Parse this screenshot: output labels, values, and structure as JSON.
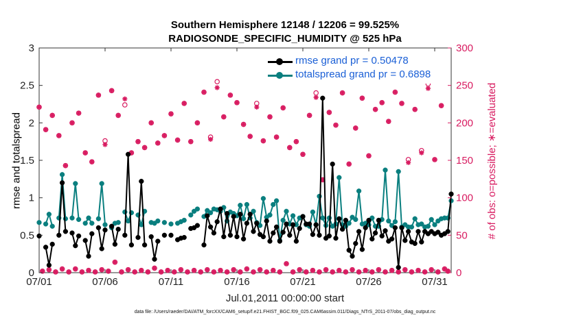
{
  "chart_data": {
    "type": "line",
    "title_line1": "Southern Hemisphere 12148 / 12206 = 99.525%",
    "title_line2": "RADIOSONDE_SPECIFIC_HUMIDITY @ 525 hPa",
    "xlabel": "Jul.01,2011 00:00:00 start",
    "ylabel_left": "rmse and totalspread",
    "ylabel_right": "# of obs: o=possible; ∗=evaluated",
    "footnote": "data file: /Users/raeder/DAI/ATM_forcXX/CAM6_setup/f.e21.FHIST_BGC.f09_025.CAM6assim.011/Diags_NTrS_2011-07/obs_diag_output.nc",
    "x_ticks": [
      "07/01",
      "07/06",
      "07/11",
      "07/16",
      "07/21",
      "07/26",
      "07/31"
    ],
    "x_tick_days": [
      1,
      6,
      11,
      16,
      21,
      26,
      31
    ],
    "xlim": [
      1,
      32.25
    ],
    "ylim_left": [
      0,
      3
    ],
    "yticks_left": [
      "0",
      "0.5",
      "1",
      "1.5",
      "2",
      "2.5",
      "3"
    ],
    "ylim_right": [
      0,
      300
    ],
    "yticks_right": [
      "0",
      "50",
      "100",
      "150",
      "200",
      "250",
      "300"
    ],
    "colors": {
      "rmse": "#000000",
      "spread": "#0a7f7f",
      "counts": "#d81b60",
      "legend_text": "#1a5fd6"
    },
    "x": [
      1.0,
      1.25,
      1.5,
      1.75,
      2.0,
      2.25,
      2.5,
      2.75,
      3.0,
      3.25,
      3.5,
      3.75,
      4.0,
      4.25,
      4.5,
      4.75,
      5.0,
      5.25,
      5.5,
      5.75,
      6.0,
      6.25,
      6.5,
      6.75,
      7.0,
      7.25,
      7.5,
      7.75,
      8.0,
      8.25,
      8.5,
      8.75,
      9.0,
      9.25,
      9.5,
      9.75,
      10.0,
      10.25,
      10.5,
      10.75,
      11.0,
      11.25,
      11.5,
      11.75,
      12.0,
      12.25,
      12.5,
      12.75,
      13.0,
      13.25,
      13.5,
      13.75,
      14.0,
      14.25,
      14.5,
      14.75,
      15.0,
      15.25,
      15.5,
      15.75,
      16.0,
      16.25,
      16.5,
      16.75,
      17.0,
      17.25,
      17.5,
      17.75,
      18.0,
      18.25,
      18.5,
      18.75,
      19.0,
      19.25,
      19.5,
      19.75,
      20.0,
      20.25,
      20.5,
      20.75,
      21.0,
      21.25,
      21.5,
      21.75,
      22.0,
      22.25,
      22.5,
      22.75,
      23.0,
      23.25,
      23.5,
      23.75,
      24.0,
      24.25,
      24.5,
      24.75,
      25.0,
      25.25,
      25.5,
      25.75,
      26.0,
      26.25,
      26.5,
      26.75,
      27.0,
      27.25,
      27.5,
      27.75,
      28.0,
      28.25,
      28.5,
      28.75,
      29.0,
      29.25,
      29.5,
      29.75,
      30.0,
      30.25,
      30.5,
      30.75,
      31.0,
      31.25,
      31.5,
      31.75,
      32.0,
      32.25
    ],
    "series": [
      {
        "name": "rmse grand pr = 0.50478",
        "values": [
          0.49,
          null,
          0.34,
          0.1,
          0.38,
          null,
          0.5,
          1.2,
          0.55,
          null,
          0.53,
          0.36,
          0.49,
          null,
          0.43,
          0.22,
          0.52,
          null,
          0.6,
          0.32,
          0.57,
          null,
          0.62,
          0.38,
          0.58,
          null,
          0.5,
          1.58,
          0.37,
          null,
          0.47,
          1.22,
          0.37,
          null,
          0.48,
          0.18,
          0.42,
          null,
          0.5,
          null,
          0.5,
          null,
          0.44,
          0.46,
          0.47,
          null,
          0.59,
          0.6,
          0.63,
          null,
          0.37,
          0.76,
          0.61,
          0.53,
          0.68,
          0.85,
          0.48,
          0.79,
          0.5,
          0.75,
          0.48,
          0.78,
          0.45,
          0.66,
          0.78,
          0.55,
          0.66,
          0.51,
          0.48,
          0.69,
          0.42,
          0.53,
          0.61,
          0.42,
          0.54,
          0.65,
          0.5,
          0.64,
          0.42,
          0.59,
          0.75,
          0.65,
          0.65,
          0.51,
          0.64,
          0.5,
          2.33,
          0.46,
          0.49,
          1.45,
          0.46,
          0.72,
          0.58,
          0.7,
          0.3,
          0.22,
          0.39,
          0.55,
          0.31,
          0.6,
          0.7,
          0.45,
          0.53,
          0.7,
          0.49,
          0.56,
          0.42,
          0.45,
          0.6,
          0.07,
          0.6,
          0.43,
          0.55,
          0.41,
          0.39,
          0.55,
          0.41,
          0.55,
          0.52,
          0.55,
          0.52,
          0.54,
          0.5,
          0.52,
          0.55,
          1.05
        ],
        "legend": "rmse grand pr = 0.50478"
      },
      {
        "name": "totalspread grand pr = 0.6898",
        "values": [
          0.67,
          null,
          0.65,
          0.78,
          0.62,
          null,
          0.73,
          1.31,
          0.72,
          null,
          0.73,
          1.19,
          0.71,
          null,
          0.66,
          0.73,
          0.66,
          null,
          0.72,
          1.19,
          0.64,
          null,
          0.6,
          0.66,
          0.67,
          null,
          0.81,
          0.69,
          0.8,
          null,
          0.77,
          0.64,
          0.82,
          null,
          0.67,
          0.66,
          0.69,
          null,
          0.67,
          null,
          0.65,
          null,
          0.66,
          0.68,
          0.7,
          null,
          0.77,
          0.82,
          0.85,
          null,
          0.75,
          0.83,
          0.8,
          0.85,
          0.84,
          0.82,
          0.87,
          0.69,
          0.81,
          0.79,
          0.76,
          0.9,
          0.72,
          0.91,
          0.73,
          0.82,
          0.67,
          0.63,
          0.99,
          0.74,
          0.77,
          0.91,
          0.96,
          0.43,
          0.7,
          0.82,
          0.65,
          0.76,
          0.64,
          0.73,
          0.75,
          0.64,
          0.62,
          0.81,
          0.64,
          1.02,
          0.73,
          0.63,
          0.73,
          0.62,
          0.65,
          1.27,
          0.64,
          0.62,
          0.66,
          0.74,
          0.71,
          1.09,
          0.65,
          0.66,
          0.64,
          0.73,
          0.62,
          0.62,
          0.71,
          1.37,
          0.69,
          0.63,
          0.68,
          1.35,
          0.61,
          0.64,
          0.61,
          0.61,
          0.72,
          0.64,
          0.65,
          0.61,
          0.62,
          0.71,
          0.64,
          0.69,
          0.72,
          0.73,
          0.73,
          0.96
        ],
        "legend": "totalspread grand pr = 0.6898"
      }
    ],
    "possible_large": [
      {
        "x": 1.0,
        "y": 221
      },
      {
        "x": 1.5,
        "y": 191
      },
      {
        "x": 2.0,
        "y": 210
      },
      {
        "x": 2.5,
        "y": 183
      },
      {
        "x": 3.0,
        "y": 143
      },
      {
        "x": 3.5,
        "y": 200
      },
      {
        "x": 4.0,
        "y": 213
      },
      {
        "x": 4.5,
        "y": 160
      },
      {
        "x": 5.0,
        "y": 148
      },
      {
        "x": 5.5,
        "y": 237
      },
      {
        "x": 6.0,
        "y": 176
      },
      {
        "x": 6.5,
        "y": 243
      },
      {
        "x": 7.0,
        "y": 210
      },
      {
        "x": 7.5,
        "y": 224
      },
      {
        "x": 8.0,
        "y": 160
      },
      {
        "x": 8.5,
        "y": 175
      },
      {
        "x": 9.0,
        "y": 167
      },
      {
        "x": 9.5,
        "y": 200
      },
      {
        "x": 10.0,
        "y": 173
      },
      {
        "x": 10.5,
        "y": 183
      },
      {
        "x": 11.0,
        "y": 212
      },
      {
        "x": 11.5,
        "y": 177
      },
      {
        "x": 12.0,
        "y": 226
      },
      {
        "x": 12.5,
        "y": 175
      },
      {
        "x": 13.0,
        "y": 200
      },
      {
        "x": 13.5,
        "y": 241
      },
      {
        "x": 14.0,
        "y": 181
      },
      {
        "x": 14.5,
        "y": 255
      },
      {
        "x": 15.0,
        "y": 208
      },
      {
        "x": 15.5,
        "y": 237
      },
      {
        "x": 16.0,
        "y": 227
      },
      {
        "x": 16.5,
        "y": 198
      },
      {
        "x": 17.0,
        "y": 182
      },
      {
        "x": 17.5,
        "y": 226
      },
      {
        "x": 18.0,
        "y": 176
      },
      {
        "x": 18.5,
        "y": 208
      },
      {
        "x": 19.0,
        "y": 181
      },
      {
        "x": 19.5,
        "y": 220
      },
      {
        "x": 20.0,
        "y": 167
      },
      {
        "x": 20.5,
        "y": 175
      },
      {
        "x": 21.0,
        "y": 158
      },
      {
        "x": 21.5,
        "y": 210
      },
      {
        "x": 22.0,
        "y": 240
      },
      {
        "x": 22.5,
        "y": 124
      },
      {
        "x": 23.0,
        "y": 214
      },
      {
        "x": 23.5,
        "y": 197
      },
      {
        "x": 24.0,
        "y": 240
      },
      {
        "x": 24.5,
        "y": 145
      },
      {
        "x": 25.0,
        "y": 193
      },
      {
        "x": 25.5,
        "y": 233
      },
      {
        "x": 26.0,
        "y": 156
      },
      {
        "x": 26.5,
        "y": 218
      },
      {
        "x": 27.0,
        "y": 227
      },
      {
        "x": 27.5,
        "y": 202
      },
      {
        "x": 28.0,
        "y": 241
      },
      {
        "x": 28.5,
        "y": 226
      },
      {
        "x": 29.0,
        "y": 151
      },
      {
        "x": 29.5,
        "y": 218
      },
      {
        "x": 30.0,
        "y": 163
      },
      {
        "x": 30.5,
        "y": 252
      },
      {
        "x": 31.0,
        "y": 151
      },
      {
        "x": 31.5,
        "y": 223
      }
    ],
    "evaluated_large": [
      {
        "x": 1.0,
        "y": 221
      },
      {
        "x": 1.5,
        "y": 191
      },
      {
        "x": 2.0,
        "y": 210
      },
      {
        "x": 2.5,
        "y": 183
      },
      {
        "x": 3.0,
        "y": 143
      },
      {
        "x": 3.5,
        "y": 200
      },
      {
        "x": 4.0,
        "y": 213
      },
      {
        "x": 4.5,
        "y": 160
      },
      {
        "x": 5.0,
        "y": 148
      },
      {
        "x": 5.5,
        "y": 237
      },
      {
        "x": 6.0,
        "y": 171
      },
      {
        "x": 6.5,
        "y": 243
      },
      {
        "x": 7.0,
        "y": 210
      },
      {
        "x": 7.5,
        "y": 232
      },
      {
        "x": 8.0,
        "y": 160
      },
      {
        "x": 8.5,
        "y": 175
      },
      {
        "x": 9.0,
        "y": 167
      },
      {
        "x": 9.5,
        "y": 200
      },
      {
        "x": 10.0,
        "y": 173
      },
      {
        "x": 10.5,
        "y": 183
      },
      {
        "x": 11.0,
        "y": 212
      },
      {
        "x": 11.5,
        "y": 177
      },
      {
        "x": 12.0,
        "y": 226
      },
      {
        "x": 12.5,
        "y": 175
      },
      {
        "x": 13.0,
        "y": 200
      },
      {
        "x": 13.5,
        "y": 241
      },
      {
        "x": 14.0,
        "y": 178
      },
      {
        "x": 14.5,
        "y": 247
      },
      {
        "x": 15.0,
        "y": 208
      },
      {
        "x": 15.5,
        "y": 237
      },
      {
        "x": 16.0,
        "y": 227
      },
      {
        "x": 16.5,
        "y": 198
      },
      {
        "x": 17.0,
        "y": 182
      },
      {
        "x": 17.5,
        "y": 221
      },
      {
        "x": 18.0,
        "y": 176
      },
      {
        "x": 18.5,
        "y": 208
      },
      {
        "x": 19.0,
        "y": 181
      },
      {
        "x": 19.5,
        "y": 220
      },
      {
        "x": 20.0,
        "y": 167
      },
      {
        "x": 20.5,
        "y": 175
      },
      {
        "x": 21.0,
        "y": 158
      },
      {
        "x": 21.5,
        "y": 210
      },
      {
        "x": 22.0,
        "y": 234
      },
      {
        "x": 22.5,
        "y": 124
      },
      {
        "x": 23.0,
        "y": 214
      },
      {
        "x": 23.5,
        "y": 197
      },
      {
        "x": 24.0,
        "y": 240
      },
      {
        "x": 24.5,
        "y": 145
      },
      {
        "x": 25.0,
        "y": 193
      },
      {
        "x": 25.5,
        "y": 233
      },
      {
        "x": 26.0,
        "y": 156
      },
      {
        "x": 26.5,
        "y": 218
      },
      {
        "x": 27.0,
        "y": 227
      },
      {
        "x": 27.5,
        "y": 202
      },
      {
        "x": 28.0,
        "y": 241
      },
      {
        "x": 28.5,
        "y": 226
      },
      {
        "x": 29.0,
        "y": 147
      },
      {
        "x": 29.5,
        "y": 218
      },
      {
        "x": 30.0,
        "y": 160
      },
      {
        "x": 30.5,
        "y": 246
      },
      {
        "x": 31.0,
        "y": 151
      },
      {
        "x": 31.5,
        "y": 223
      }
    ],
    "possible_small": [
      {
        "x": 1.25,
        "y": 2
      },
      {
        "x": 1.75,
        "y": 4
      },
      {
        "x": 2.25,
        "y": 1
      },
      {
        "x": 2.75,
        "y": 5
      },
      {
        "x": 3.25,
        "y": 1
      },
      {
        "x": 3.75,
        "y": 5
      },
      {
        "x": 4.25,
        "y": 1
      },
      {
        "x": 4.75,
        "y": 3
      },
      {
        "x": 5.25,
        "y": 1
      },
      {
        "x": 5.75,
        "y": 4
      },
      {
        "x": 6.25,
        "y": 2
      },
      {
        "x": 6.75,
        "y": 14
      },
      {
        "x": 7.25,
        "y": 1
      },
      {
        "x": 7.75,
        "y": 4
      },
      {
        "x": 8.25,
        "y": 1
      },
      {
        "x": 8.75,
        "y": 3
      },
      {
        "x": 9.25,
        "y": 1
      },
      {
        "x": 9.75,
        "y": 6
      },
      {
        "x": 10.25,
        "y": 1
      },
      {
        "x": 10.75,
        "y": 3
      },
      {
        "x": 11.25,
        "y": 1
      },
      {
        "x": 11.75,
        "y": 4
      },
      {
        "x": 12.25,
        "y": 1
      },
      {
        "x": 12.75,
        "y": 3
      },
      {
        "x": 13.25,
        "y": 1
      },
      {
        "x": 13.75,
        "y": 4
      },
      {
        "x": 14.25,
        "y": 1
      },
      {
        "x": 14.75,
        "y": 3
      },
      {
        "x": 15.25,
        "y": 1
      },
      {
        "x": 15.75,
        "y": 4
      },
      {
        "x": 16.25,
        "y": 1
      },
      {
        "x": 16.75,
        "y": 5
      },
      {
        "x": 17.25,
        "y": 1
      },
      {
        "x": 17.75,
        "y": 4
      },
      {
        "x": 18.25,
        "y": 1
      },
      {
        "x": 18.75,
        "y": 3
      },
      {
        "x": 19.25,
        "y": 1
      },
      {
        "x": 19.75,
        "y": 12
      },
      {
        "x": 20.25,
        "y": 1
      },
      {
        "x": 20.75,
        "y": 4
      },
      {
        "x": 21.25,
        "y": 1
      },
      {
        "x": 21.75,
        "y": 3
      },
      {
        "x": 22.25,
        "y": 1
      },
      {
        "x": 22.75,
        "y": 4
      },
      {
        "x": 23.25,
        "y": 1
      },
      {
        "x": 23.75,
        "y": 3
      },
      {
        "x": 24.25,
        "y": 1
      },
      {
        "x": 24.75,
        "y": 4
      },
      {
        "x": 25.25,
        "y": 1
      },
      {
        "x": 25.75,
        "y": 3
      },
      {
        "x": 26.25,
        "y": 1
      },
      {
        "x": 26.75,
        "y": 4
      },
      {
        "x": 27.25,
        "y": 1
      },
      {
        "x": 27.75,
        "y": 3
      },
      {
        "x": 28.25,
        "y": 1
      },
      {
        "x": 28.75,
        "y": 4
      },
      {
        "x": 29.25,
        "y": 1
      },
      {
        "x": 29.75,
        "y": 3
      },
      {
        "x": 30.25,
        "y": 1
      },
      {
        "x": 30.75,
        "y": 4
      },
      {
        "x": 31.25,
        "y": 1
      },
      {
        "x": 31.75,
        "y": 5
      },
      {
        "x": 32.0,
        "y": 2
      }
    ],
    "legend_position": "top-right"
  }
}
